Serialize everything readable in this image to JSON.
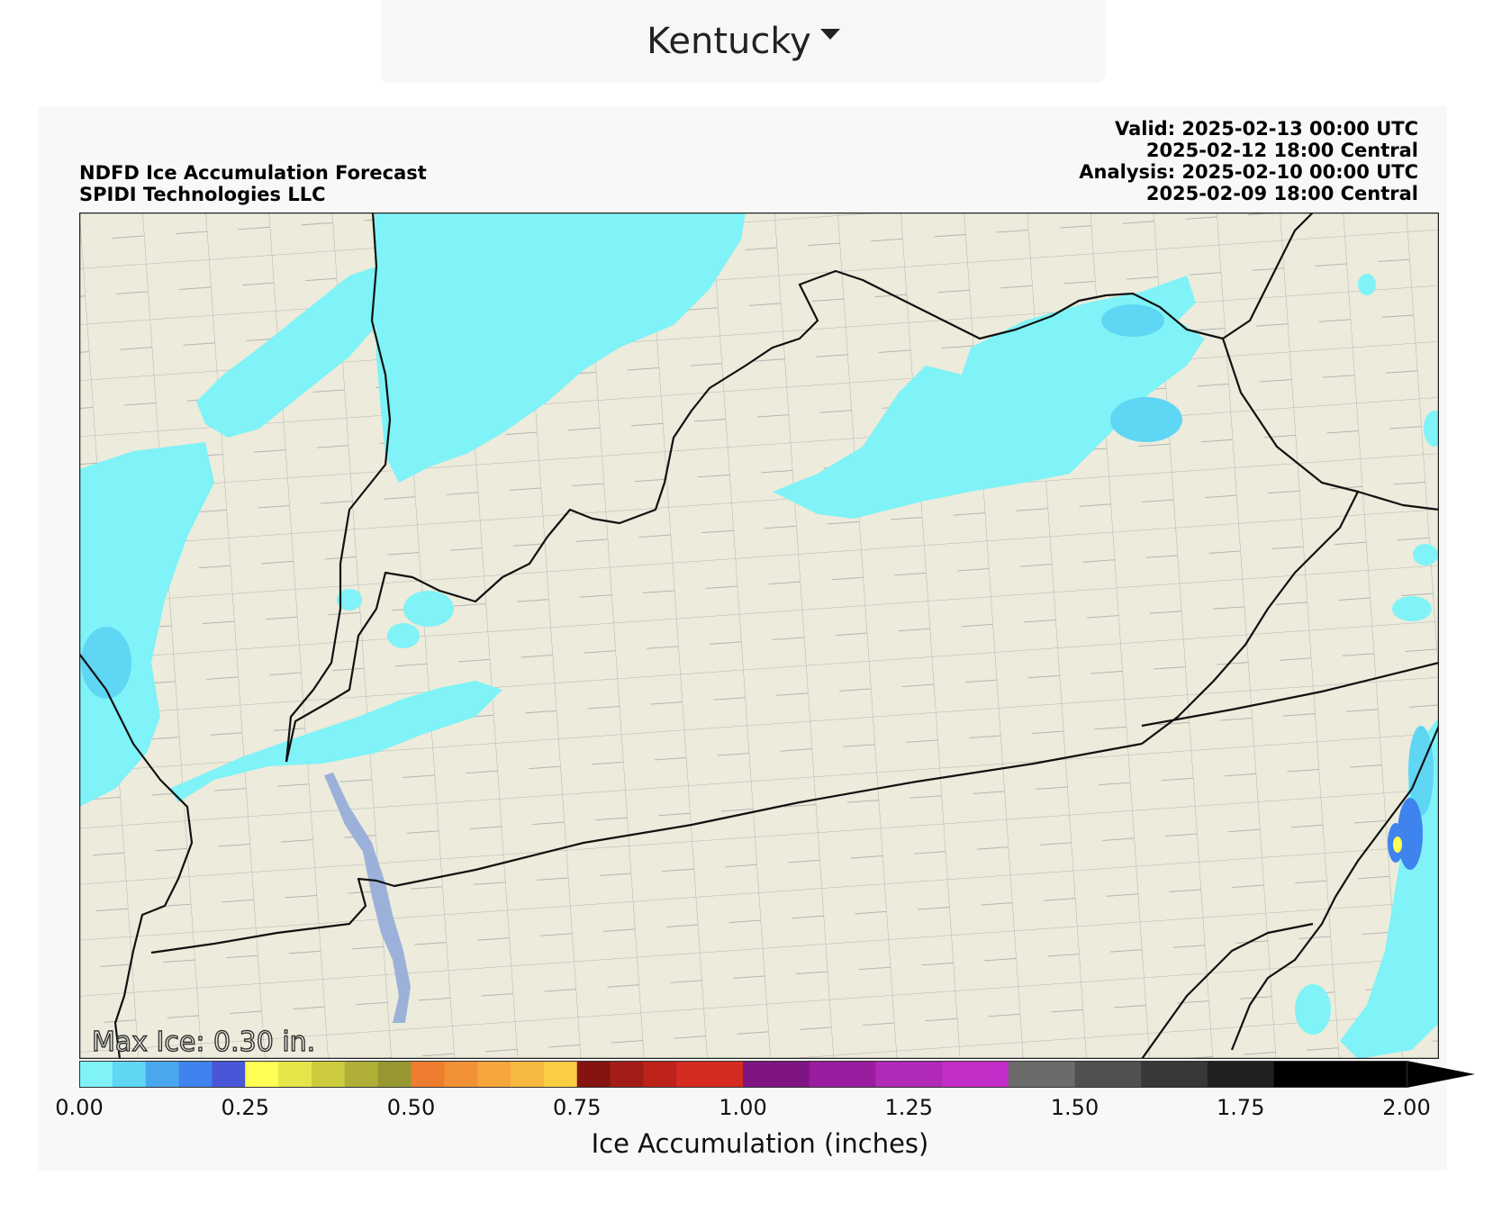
{
  "selector": {
    "state": "Kentucky",
    "icon": "caret-down-icon"
  },
  "chart": {
    "title_line1": "NDFD Ice Accumulation Forecast",
    "title_line2": "SPIDI Technologies LLC",
    "valid_utc": "Valid: 2025-02-13 00:00 UTC",
    "valid_central": "2025-02-12 18:00 Central",
    "analysis_utc": "Analysis: 2025-02-10 00:00 UTC",
    "analysis_central": "2025-02-09 18:00 Central",
    "max_ice": "Max Ice: 0.30 in."
  },
  "colorbar": {
    "label": "Ice Accumulation (inches)",
    "ticks": [
      "0.00",
      "0.25",
      "0.50",
      "0.75",
      "1.00",
      "1.25",
      "1.50",
      "1.75",
      "2.00"
    ],
    "range": [
      0,
      2.0
    ],
    "extend": "max",
    "colors": [
      "#7ff3f7",
      "#5fd6f4",
      "#4aa8f0",
      "#3f84ee",
      "#4a56d8",
      "#ffff55",
      "#e6e64a",
      "#cccc3e",
      "#b0b038",
      "#979731",
      "#ef7d2f",
      "#f29135",
      "#f5a53b",
      "#f7b940",
      "#f9ce45",
      "#851410",
      "#a31d17",
      "#bd231b",
      "#d62b21",
      "#7e1582",
      "#9a1c9f",
      "#b12ab7",
      "#c22ec8",
      "#6b6b6b",
      "#505050",
      "#383838",
      "#202020",
      "#000000"
    ],
    "segment_bounds": [
      0,
      0.05,
      0.1,
      0.15,
      0.2,
      0.25,
      0.3,
      0.35,
      0.4,
      0.45,
      0.5,
      0.55,
      0.6,
      0.65,
      0.7,
      0.75,
      0.8,
      0.85,
      0.9,
      1.0,
      1.1,
      1.2,
      1.3,
      1.4,
      1.5,
      1.6,
      1.7,
      1.8,
      2.0
    ]
  },
  "map": {
    "land_color": "#ecebdc",
    "county_line_color": "#a8a8a8",
    "state_line_color": "#111111",
    "ice_light_color": "#7ff3f7",
    "ice_mid_color": "#5fd6f4",
    "ice_heavy_color": "#3f84ee",
    "lake_color": "#9cb1d9"
  }
}
